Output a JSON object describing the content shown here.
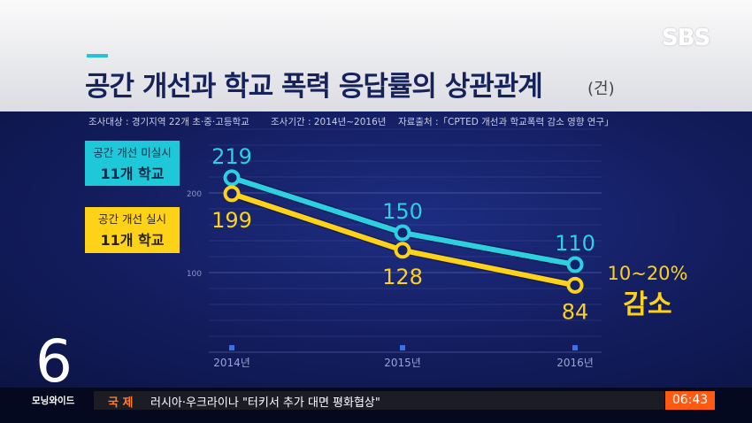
{
  "header": {
    "title": "공간 개선과 학교 폭력 응답률의 상관관계",
    "unit": "(건)",
    "logo": "SBS"
  },
  "meta": {
    "subjects": "조사대상 : 경기지역 22개 초·중·고등학교",
    "period": "조사기간 : 2014년~2016년",
    "source": "자료출처 :「CPTED 개선과 학교폭력 감소 영향 연구」"
  },
  "legend": {
    "cyan": {
      "line1": "공간 개선 미실시",
      "line2": "11개 학교"
    },
    "yellow": {
      "line1": "공간 개선 실시",
      "line2": "11개 학교"
    }
  },
  "chart_data": {
    "type": "line",
    "categories": [
      "2014년",
      "2015년",
      "2016년"
    ],
    "series": [
      {
        "name": "공간 개선 미실시 11개 학교",
        "values": [
          219,
          150,
          110
        ],
        "color": "#2cd0e0"
      },
      {
        "name": "공간 개선 실시 11개 학교",
        "values": [
          199,
          128,
          84
        ],
        "color": "#ffd21a"
      }
    ],
    "yticks": [
      100,
      200
    ],
    "ylim": [
      0,
      300
    ],
    "grid": true,
    "annotation": {
      "line1": "10~20%",
      "line2": "감소"
    }
  },
  "ticker": {
    "show_number": "6",
    "show_name": "모닝와이드",
    "category": "국 제",
    "headline": "러시아·우크라이나 \"터키서 추가 대면 평화협상\"",
    "time": "06:43"
  },
  "colors": {
    "cyan": "#2cd0e0",
    "yellow": "#ffd21a",
    "title": "#16225a",
    "clock": "#ff5a14"
  }
}
